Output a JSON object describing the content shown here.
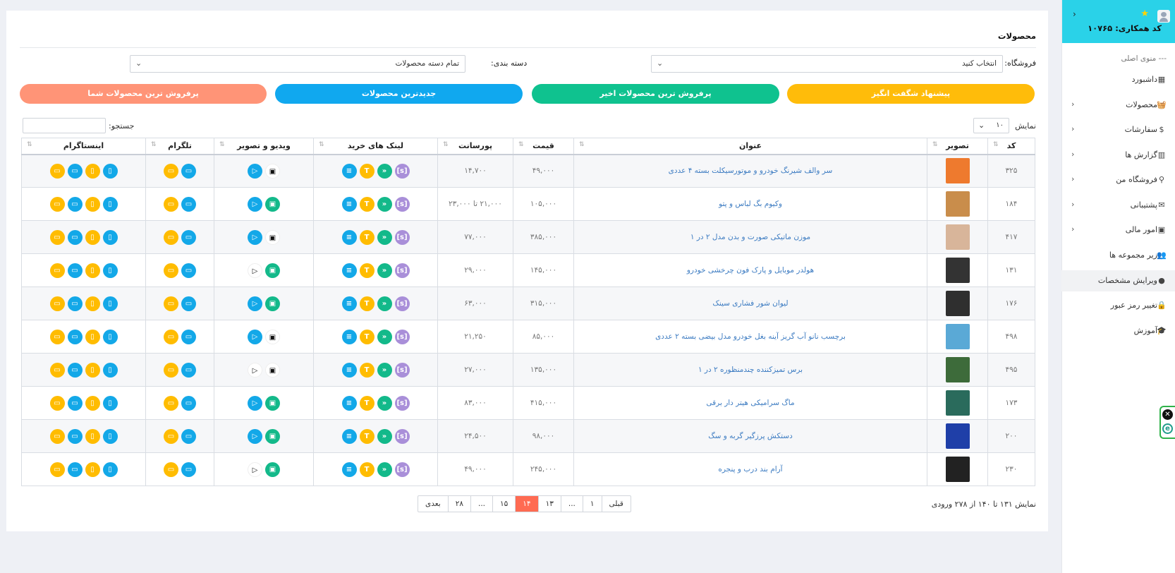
{
  "sidebar": {
    "partner_code": "کد همکاری: ۱۰۷۶۵",
    "menu_title": "--- منوی اصلی",
    "items": [
      {
        "label": "داشبورد",
        "icon": "dashboard-icon",
        "glyph": "▦",
        "has_sub": false
      },
      {
        "label": "محصولات",
        "icon": "basket-icon",
        "glyph": "🧺",
        "has_sub": true
      },
      {
        "label": "سفارشات",
        "icon": "dollar-icon",
        "glyph": "$",
        "has_sub": true
      },
      {
        "label": "گزارش ها",
        "icon": "chart-icon",
        "glyph": "▥",
        "has_sub": true
      },
      {
        "label": "فروشگاه من",
        "icon": "store-icon",
        "glyph": "⚲",
        "has_sub": true
      },
      {
        "label": "پشتیبانی",
        "icon": "envelope-icon",
        "glyph": "✉",
        "has_sub": true
      },
      {
        "label": "امور مالی",
        "icon": "money-icon",
        "glyph": "▣",
        "has_sub": true
      },
      {
        "label": "زیر مجموعه ها",
        "icon": "users-icon",
        "glyph": "👥",
        "has_sub": false
      },
      {
        "label": "ویرایش مشخصات",
        "icon": "user-icon",
        "glyph": "●",
        "has_sub": false,
        "active": true
      },
      {
        "label": "تغییر رمز عبور",
        "icon": "lock-icon",
        "glyph": "🔒",
        "has_sub": false
      },
      {
        "label": "آموزش",
        "icon": "graduation-cap-icon",
        "glyph": "🎓",
        "has_sub": false
      }
    ]
  },
  "main": {
    "title": "محصولات",
    "store_label": "فروشگاه:",
    "store_value": "انتخاب کنید",
    "category_label": "دسته بندی:",
    "category_value": "تمام دسته محصولات",
    "buttons": [
      {
        "label": "پیشنهاد شگفت انگیز",
        "color": "#ffbc0a"
      },
      {
        "label": "پرفروش ترین محصولات اخیر",
        "color": "#0fc28f"
      },
      {
        "label": "جدیدترین محصولات",
        "color": "#10a8ef"
      },
      {
        "label": "پرفروش ترین محصولات شما",
        "color": "#ff9477"
      }
    ],
    "show_label": "نمایش",
    "show_value": "۱۰",
    "search_label": "جستجو:"
  },
  "table": {
    "headers": [
      "کد",
      "تصویر",
      "عنوان",
      "قیمت",
      "پورسانت",
      "لینک های خرید",
      "ویدیو و تصویر",
      "تلگرام",
      "اینستاگرام"
    ],
    "rows": [
      {
        "code": "۳۲۵",
        "title": "سر والف شیرنگ خودرو و موتورسیکلت بسته ۴ عددی",
        "price": "۴۹,۰۰۰",
        "commission": "۱۴,۷۰۰",
        "media": "none",
        "thumb": "#ee7a2e"
      },
      {
        "code": "۱۸۴",
        "title": "وکیوم بگ لباس و پتو",
        "price": "۱۰۵,۰۰۰",
        "commission": "۲۱,۰۰۰ تا ۲۳,۰۰۰",
        "media": "both",
        "thumb": "#c98d4b"
      },
      {
        "code": "۴۱۷",
        "title": "موزن ماتیکی صورت و بدن مدل ۲ در ۱",
        "price": "۳۸۵,۰۰۰",
        "commission": "۷۷,۰۰۰",
        "media": "none",
        "thumb": "#d8b59a"
      },
      {
        "code": "۱۳۱",
        "title": "هولدر موبایل و پارک فون چرخشی خودرو",
        "price": "۱۴۵,۰۰۰",
        "commission": "۲۹,۰۰۰",
        "media": "image",
        "thumb": "#333333"
      },
      {
        "code": "۱۷۶",
        "title": "لیوان شور فشاری سینک",
        "price": "۳۱۵,۰۰۰",
        "commission": "۶۳,۰۰۰",
        "media": "both",
        "thumb": "#2f2f2f"
      },
      {
        "code": "۴۹۸",
        "title": "برچسب نانو آب گریز آینه بغل خودرو مدل بیضی بسته ۲ عددی",
        "price": "۸۵,۰۰۰",
        "commission": "۲۱,۲۵۰",
        "media": "none",
        "thumb": "#5aa9d6"
      },
      {
        "code": "۴۹۵",
        "title": "برس تمیزکننده چندمنظوره ۲ در ۱",
        "price": "۱۳۵,۰۰۰",
        "commission": "۲۷,۰۰۰",
        "media": "plain",
        "thumb": "#3d6b3a"
      },
      {
        "code": "۱۷۳",
        "title": "ماگ سرامیکی هیتر دار برقی",
        "price": "۴۱۵,۰۰۰",
        "commission": "۸۳,۰۰۰",
        "media": "both",
        "thumb": "#2a6b5c"
      },
      {
        "code": "۲۰۰",
        "title": "دستکش پرزگیر گربه و سگ",
        "price": "۹۸,۰۰۰",
        "commission": "۲۴,۵۰۰",
        "media": "both",
        "thumb": "#1f3fa8"
      },
      {
        "code": "۲۳۰",
        "title": "آرام بند درب و پنجره",
        "price": "۲۴۵,۰۰۰",
        "commission": "۴۹,۰۰۰",
        "media": "image",
        "thumb": "#222222"
      }
    ]
  },
  "footer": {
    "info": "نمایش ۱۳۱ تا ۱۴۰ از ۲۷۸ ورودی",
    "pages": [
      "قبلی",
      "۱",
      "...",
      "۱۳",
      "۱۴",
      "۱۵",
      "...",
      "۲۸",
      "بعدی"
    ],
    "current": "۱۴"
  }
}
